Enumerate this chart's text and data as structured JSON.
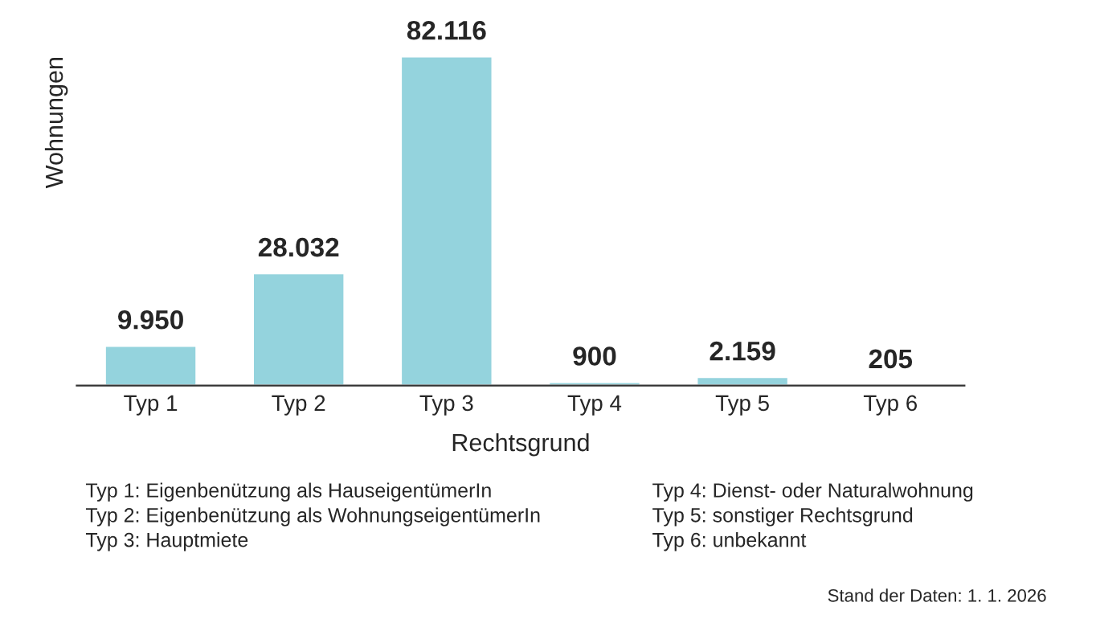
{
  "chart_data": {
    "type": "bar",
    "xlabel": "Rechtsgrund",
    "ylabel": "Wohnungen",
    "categories": [
      "Typ 1",
      "Typ 2",
      "Typ 3",
      "Typ 4",
      "Typ 5",
      "Typ 6"
    ],
    "values": [
      9950,
      28032,
      82116,
      900,
      2159,
      205
    ],
    "value_labels": [
      "9.950",
      "28.032",
      "82.116",
      "900",
      "2.159",
      "205"
    ],
    "color": "#94d3dd",
    "ylim": [
      0,
      82116
    ],
    "tick_labels": "x",
    "grid": false,
    "legend": false,
    "annotations": [
      "Typ 1: Eigenbenützung als HauseigentümerIn",
      "Typ 2: Eigenbenützung als WohnungseigentümerIn",
      "Typ 3: Hauptmiete",
      "Typ 4: Dienst- oder Naturalwohnung",
      "Typ 5: sonstiger Rechtsgrund",
      "Typ 6: unbekannt",
      "Stand der Daten: 1. 1. 2026"
    ]
  }
}
